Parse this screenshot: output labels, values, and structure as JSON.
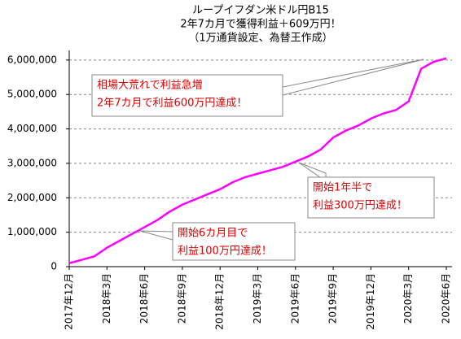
{
  "chart_data": {
    "type": "line",
    "title": [
      "ループイフダン米ドル円B15",
      "2年7カ月で獲得利益＋609万円！",
      "（1万通貨設定、為替王作成）"
    ],
    "categories": [
      "2017年12月",
      null,
      null,
      "2018年3月",
      null,
      null,
      "2018年6月",
      null,
      null,
      "2018年9月",
      null,
      null,
      "2018年12月",
      null,
      null,
      "2019年3月",
      null,
      null,
      "2019年6月",
      null,
      null,
      "2019年9月",
      null,
      null,
      "2019年12月",
      null,
      null,
      "2020年3月",
      null,
      null,
      "2020年6月"
    ],
    "series": [
      {
        "color": "#ff00ff",
        "values": [
          100000,
          200000,
          300000,
          550000,
          750000,
          950000,
          1150000,
          1350000,
          1600000,
          1800000,
          1950000,
          2100000,
          2250000,
          2450000,
          2600000,
          2700000,
          2800000,
          2900000,
          3050000,
          3200000,
          3400000,
          3750000,
          3950000,
          4100000,
          4300000,
          4450000,
          4550000,
          4800000,
          5750000,
          5950000,
          6050000
        ]
      }
    ],
    "ylim": [
      0,
      6280000
    ],
    "yticks": [
      0,
      {
        "value": 1000000,
        "label": "1,000,000"
      },
      {
        "value": 2000000,
        "label": "2,000,000"
      },
      {
        "value": 3000000,
        "label": "3,000,000"
      },
      {
        "value": 4000000,
        "label": "4,000,000"
      },
      {
        "value": 5000000,
        "label": "5,000,000"
      },
      {
        "value": 6000000,
        "label": "6,000,000"
      }
    ],
    "grid": true,
    "annotations": [
      {
        "lines": [
          "相場大荒れで利益急増",
          "2年7カ月で利益600万円達成！"
        ]
      },
      {
        "lines": [
          "開始1年半で",
          "利益300万円達成！"
        ]
      },
      {
        "lines": [
          "開始6カ月目で",
          "利益100万円達成！"
        ]
      }
    ]
  }
}
